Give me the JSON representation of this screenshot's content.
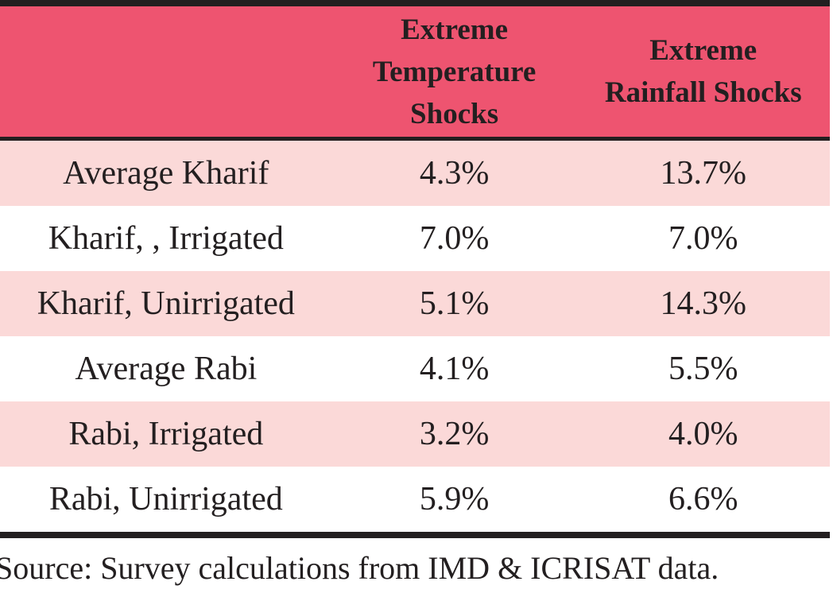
{
  "chart_data": {
    "type": "table",
    "title": "",
    "columns": [
      "",
      "Extreme Temperature Shocks",
      "Extreme Rainfall Shocks"
    ],
    "categories": [
      "Average Kharif",
      "Kharif, , Irrigated",
      "Kharif, Unirrigated",
      "Average Rabi",
      "Rabi, Irrigated",
      "Rabi, Unirrigated"
    ],
    "series": [
      {
        "name": "Extreme Temperature Shocks",
        "values": [
          4.3,
          7.0,
          5.1,
          4.1,
          3.2,
          5.9
        ],
        "unit": "%"
      },
      {
        "name": "Extreme Rainfall Shocks",
        "values": [
          13.7,
          7.0,
          14.3,
          5.5,
          4.0,
          6.6
        ],
        "unit": "%"
      }
    ],
    "rows": [
      [
        "Average Kharif",
        "4.3%",
        "13.7%"
      ],
      [
        "Kharif, , Irrigated",
        "7.0%",
        "7.0%"
      ],
      [
        "Kharif, Unirrigated",
        "5.1%",
        "14.3%"
      ],
      [
        "Average Rabi",
        "4.1%",
        "5.5%"
      ],
      [
        "Rabi, Irrigated",
        "3.2%",
        "4.0%"
      ],
      [
        "Rabi, Unirrigated",
        "5.9%",
        "6.6%"
      ]
    ],
    "source": "Source: Survey calculations from IMD & ICRISAT data."
  },
  "table": {
    "header": {
      "empty": "",
      "temp": "Extreme Temperature Shocks",
      "rain": "Extreme Rainfall Shocks"
    },
    "rows": [
      {
        "label": "Average Kharif",
        "temp": "4.3%",
        "rain": "13.7%"
      },
      {
        "label": "Kharif, , Irrigated",
        "temp": "7.0%",
        "rain": "7.0%"
      },
      {
        "label": "Kharif, Unirrigated",
        "temp": "5.1%",
        "rain": "14.3%"
      },
      {
        "label": "Average Rabi",
        "temp": "4.1%",
        "rain": "5.5%"
      },
      {
        "label": "Rabi, Irrigated",
        "temp": "3.2%",
        "rain": "4.0%"
      },
      {
        "label": "Rabi, Unirrigated",
        "temp": "5.9%",
        "rain": "6.6%"
      }
    ],
    "source_note": "Source: Survey calculations from IMD & ICRISAT data."
  },
  "colors": {
    "header_bg": "#EE5470",
    "row_alt_bg": "#FBD9D8",
    "row_bg": "#FFFFFF",
    "border": "#231F20",
    "text": "#231F20"
  }
}
